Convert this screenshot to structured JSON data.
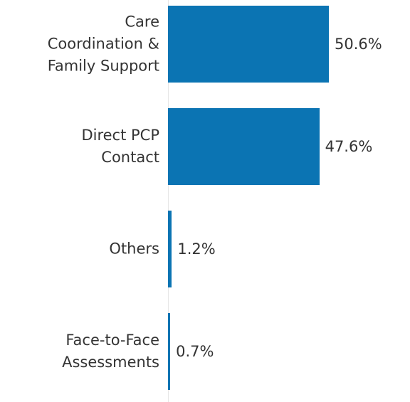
{
  "chart_data": {
    "type": "bar",
    "orientation": "horizontal",
    "categories": [
      "Care\nCoordination &\nFamily Support",
      "Direct PCP\nContact",
      "Others",
      "Face-to-Face\nAssessments"
    ],
    "values": [
      50.6,
      47.6,
      1.2,
      0.7
    ],
    "value_labels": [
      "50.6%",
      "47.6%",
      "1.2%",
      "0.7%"
    ],
    "color": "#0b74b3"
  }
}
